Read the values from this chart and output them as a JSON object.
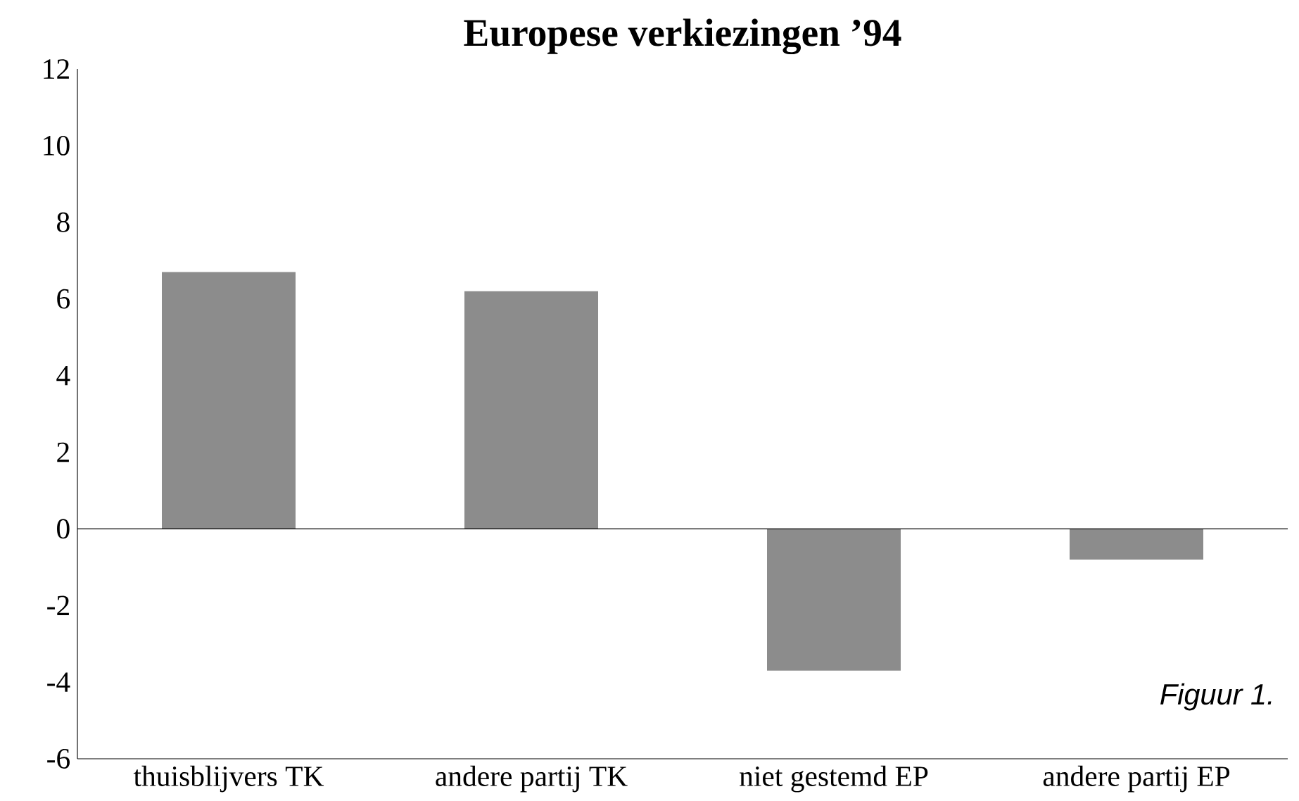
{
  "chart_data": {
    "type": "bar",
    "title": "Europese verkiezingen ’94",
    "categories": [
      "thuisblijvers TK",
      "andere partij TK",
      "niet gestemd EP",
      "andere partij EP"
    ],
    "values": [
      6.7,
      6.2,
      -3.7,
      -0.8
    ],
    "color": "#8c8c8c",
    "ylim": [
      -6,
      12
    ],
    "yticks": [
      -6,
      -4,
      -2,
      0,
      2,
      4,
      6,
      8,
      10,
      12
    ],
    "annotations": [
      "Figuur 1."
    ]
  }
}
